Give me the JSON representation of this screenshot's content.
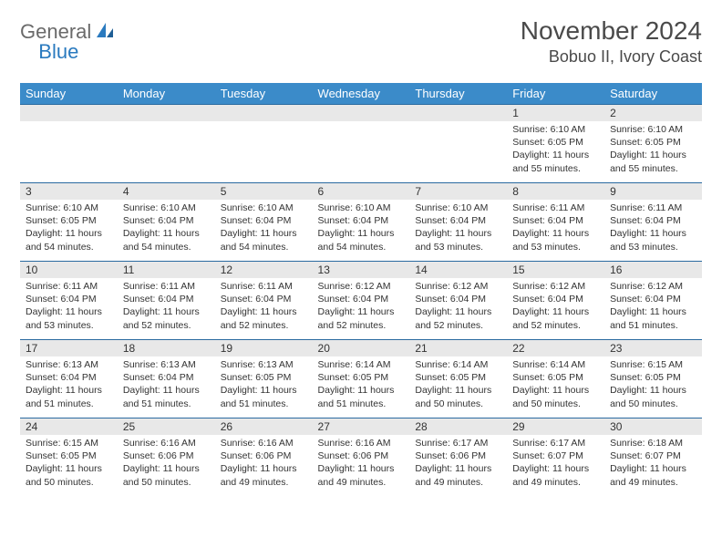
{
  "brand": {
    "part1": "General",
    "part2": "Blue"
  },
  "title": "November 2024",
  "location": "Bobuo II, Ivory Coast",
  "colors": {
    "header_bg": "#3b8bc9",
    "header_text": "#ffffff",
    "daynum_bg": "#e8e8e8",
    "row_border": "#2a6aa0",
    "text": "#333333",
    "brand_gray": "#6a6a6a",
    "brand_blue": "#2a7abf"
  },
  "dayNames": [
    "Sunday",
    "Monday",
    "Tuesday",
    "Wednesday",
    "Thursday",
    "Friday",
    "Saturday"
  ],
  "weeks": [
    [
      {
        "day": "",
        "lines": []
      },
      {
        "day": "",
        "lines": []
      },
      {
        "day": "",
        "lines": []
      },
      {
        "day": "",
        "lines": []
      },
      {
        "day": "",
        "lines": []
      },
      {
        "day": "1",
        "lines": [
          "Sunrise: 6:10 AM",
          "Sunset: 6:05 PM",
          "Daylight: 11 hours and 55 minutes."
        ]
      },
      {
        "day": "2",
        "lines": [
          "Sunrise: 6:10 AM",
          "Sunset: 6:05 PM",
          "Daylight: 11 hours and 55 minutes."
        ]
      }
    ],
    [
      {
        "day": "3",
        "lines": [
          "Sunrise: 6:10 AM",
          "Sunset: 6:05 PM",
          "Daylight: 11 hours and 54 minutes."
        ]
      },
      {
        "day": "4",
        "lines": [
          "Sunrise: 6:10 AM",
          "Sunset: 6:04 PM",
          "Daylight: 11 hours and 54 minutes."
        ]
      },
      {
        "day": "5",
        "lines": [
          "Sunrise: 6:10 AM",
          "Sunset: 6:04 PM",
          "Daylight: 11 hours and 54 minutes."
        ]
      },
      {
        "day": "6",
        "lines": [
          "Sunrise: 6:10 AM",
          "Sunset: 6:04 PM",
          "Daylight: 11 hours and 54 minutes."
        ]
      },
      {
        "day": "7",
        "lines": [
          "Sunrise: 6:10 AM",
          "Sunset: 6:04 PM",
          "Daylight: 11 hours and 53 minutes."
        ]
      },
      {
        "day": "8",
        "lines": [
          "Sunrise: 6:11 AM",
          "Sunset: 6:04 PM",
          "Daylight: 11 hours and 53 minutes."
        ]
      },
      {
        "day": "9",
        "lines": [
          "Sunrise: 6:11 AM",
          "Sunset: 6:04 PM",
          "Daylight: 11 hours and 53 minutes."
        ]
      }
    ],
    [
      {
        "day": "10",
        "lines": [
          "Sunrise: 6:11 AM",
          "Sunset: 6:04 PM",
          "Daylight: 11 hours and 53 minutes."
        ]
      },
      {
        "day": "11",
        "lines": [
          "Sunrise: 6:11 AM",
          "Sunset: 6:04 PM",
          "Daylight: 11 hours and 52 minutes."
        ]
      },
      {
        "day": "12",
        "lines": [
          "Sunrise: 6:11 AM",
          "Sunset: 6:04 PM",
          "Daylight: 11 hours and 52 minutes."
        ]
      },
      {
        "day": "13",
        "lines": [
          "Sunrise: 6:12 AM",
          "Sunset: 6:04 PM",
          "Daylight: 11 hours and 52 minutes."
        ]
      },
      {
        "day": "14",
        "lines": [
          "Sunrise: 6:12 AM",
          "Sunset: 6:04 PM",
          "Daylight: 11 hours and 52 minutes."
        ]
      },
      {
        "day": "15",
        "lines": [
          "Sunrise: 6:12 AM",
          "Sunset: 6:04 PM",
          "Daylight: 11 hours and 52 minutes."
        ]
      },
      {
        "day": "16",
        "lines": [
          "Sunrise: 6:12 AM",
          "Sunset: 6:04 PM",
          "Daylight: 11 hours and 51 minutes."
        ]
      }
    ],
    [
      {
        "day": "17",
        "lines": [
          "Sunrise: 6:13 AM",
          "Sunset: 6:04 PM",
          "Daylight: 11 hours and 51 minutes."
        ]
      },
      {
        "day": "18",
        "lines": [
          "Sunrise: 6:13 AM",
          "Sunset: 6:04 PM",
          "Daylight: 11 hours and 51 minutes."
        ]
      },
      {
        "day": "19",
        "lines": [
          "Sunrise: 6:13 AM",
          "Sunset: 6:05 PM",
          "Daylight: 11 hours and 51 minutes."
        ]
      },
      {
        "day": "20",
        "lines": [
          "Sunrise: 6:14 AM",
          "Sunset: 6:05 PM",
          "Daylight: 11 hours and 51 minutes."
        ]
      },
      {
        "day": "21",
        "lines": [
          "Sunrise: 6:14 AM",
          "Sunset: 6:05 PM",
          "Daylight: 11 hours and 50 minutes."
        ]
      },
      {
        "day": "22",
        "lines": [
          "Sunrise: 6:14 AM",
          "Sunset: 6:05 PM",
          "Daylight: 11 hours and 50 minutes."
        ]
      },
      {
        "day": "23",
        "lines": [
          "Sunrise: 6:15 AM",
          "Sunset: 6:05 PM",
          "Daylight: 11 hours and 50 minutes."
        ]
      }
    ],
    [
      {
        "day": "24",
        "lines": [
          "Sunrise: 6:15 AM",
          "Sunset: 6:05 PM",
          "Daylight: 11 hours and 50 minutes."
        ]
      },
      {
        "day": "25",
        "lines": [
          "Sunrise: 6:16 AM",
          "Sunset: 6:06 PM",
          "Daylight: 11 hours and 50 minutes."
        ]
      },
      {
        "day": "26",
        "lines": [
          "Sunrise: 6:16 AM",
          "Sunset: 6:06 PM",
          "Daylight: 11 hours and 49 minutes."
        ]
      },
      {
        "day": "27",
        "lines": [
          "Sunrise: 6:16 AM",
          "Sunset: 6:06 PM",
          "Daylight: 11 hours and 49 minutes."
        ]
      },
      {
        "day": "28",
        "lines": [
          "Sunrise: 6:17 AM",
          "Sunset: 6:06 PM",
          "Daylight: 11 hours and 49 minutes."
        ]
      },
      {
        "day": "29",
        "lines": [
          "Sunrise: 6:17 AM",
          "Sunset: 6:07 PM",
          "Daylight: 11 hours and 49 minutes."
        ]
      },
      {
        "day": "30",
        "lines": [
          "Sunrise: 6:18 AM",
          "Sunset: 6:07 PM",
          "Daylight: 11 hours and 49 minutes."
        ]
      }
    ]
  ]
}
